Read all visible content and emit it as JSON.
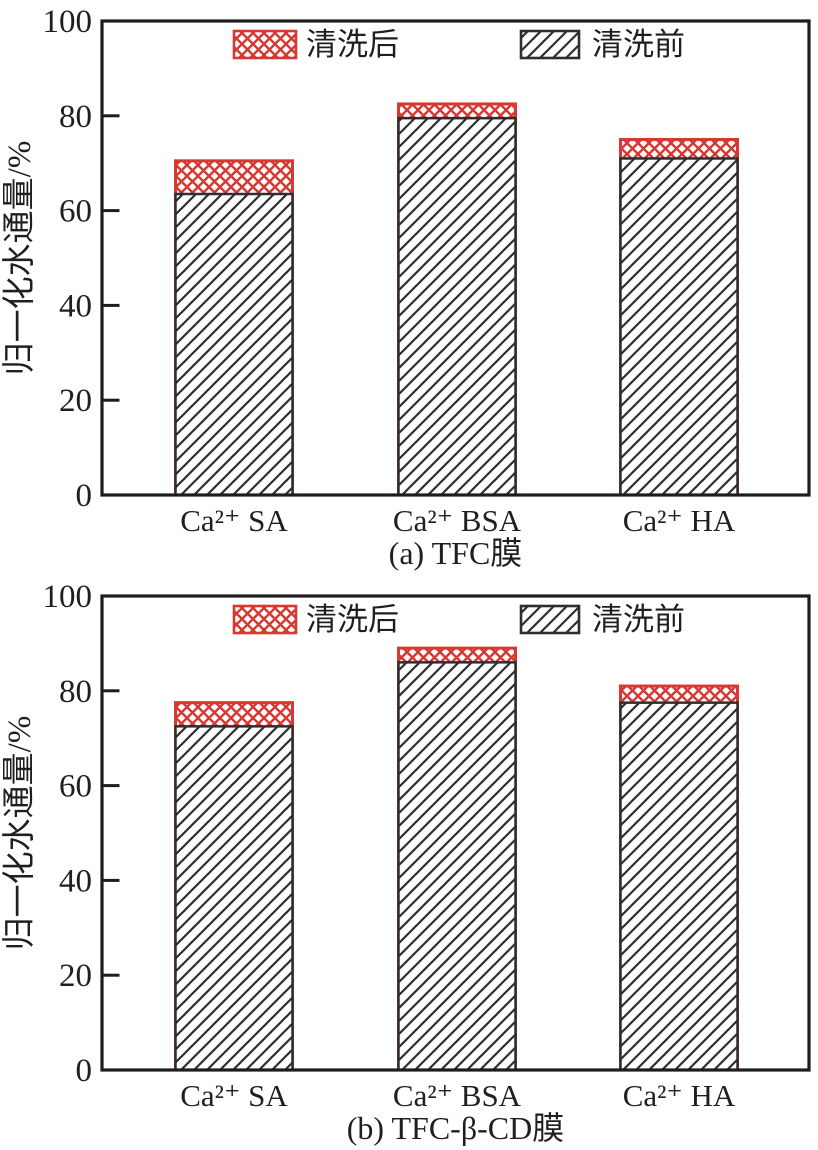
{
  "figure": {
    "background": "#ffffff"
  },
  "colors": {
    "after_red": "#d83832",
    "before_hatch": "#2e2e2e",
    "axis": "#1d1d1d",
    "text": "#1f1f1f"
  },
  "legend": {
    "after_label": "清洗后",
    "before_label": "清洗前"
  },
  "chart_data": [
    {
      "type": "bar",
      "panel": "a",
      "caption": "(a) TFC膜",
      "ylabel": "归一化水通量/%",
      "ylim": [
        0,
        100
      ],
      "yticks": [
        0,
        20,
        40,
        60,
        80,
        100
      ],
      "categories": [
        "Ca²⁺ SA",
        "Ca²⁺ BSA",
        "Ca²⁺ HA"
      ],
      "series": [
        {
          "name": "清洗后",
          "style": "red-crosshatch",
          "values": [
            70.5,
            82.5,
            75
          ]
        },
        {
          "name": "清洗前",
          "style": "black-diagonal-hatch",
          "values": [
            63.5,
            79.5,
            71
          ]
        }
      ],
      "legend_position": "top-inside",
      "grid": false
    },
    {
      "type": "bar",
      "panel": "b",
      "caption": "(b) TFC-β-CD膜",
      "ylabel": "归一化水通量/%",
      "ylim": [
        0,
        100
      ],
      "yticks": [
        0,
        20,
        40,
        60,
        80,
        100
      ],
      "categories": [
        "Ca²⁺ SA",
        "Ca²⁺ BSA",
        "Ca²⁺ HA"
      ],
      "series": [
        {
          "name": "清洗后",
          "style": "red-crosshatch",
          "values": [
            77.5,
            89,
            81
          ]
        },
        {
          "name": "清洗前",
          "style": "black-diagonal-hatch",
          "values": [
            72.5,
            86,
            77.5
          ]
        }
      ],
      "legend_position": "top-inside",
      "grid": false
    }
  ]
}
